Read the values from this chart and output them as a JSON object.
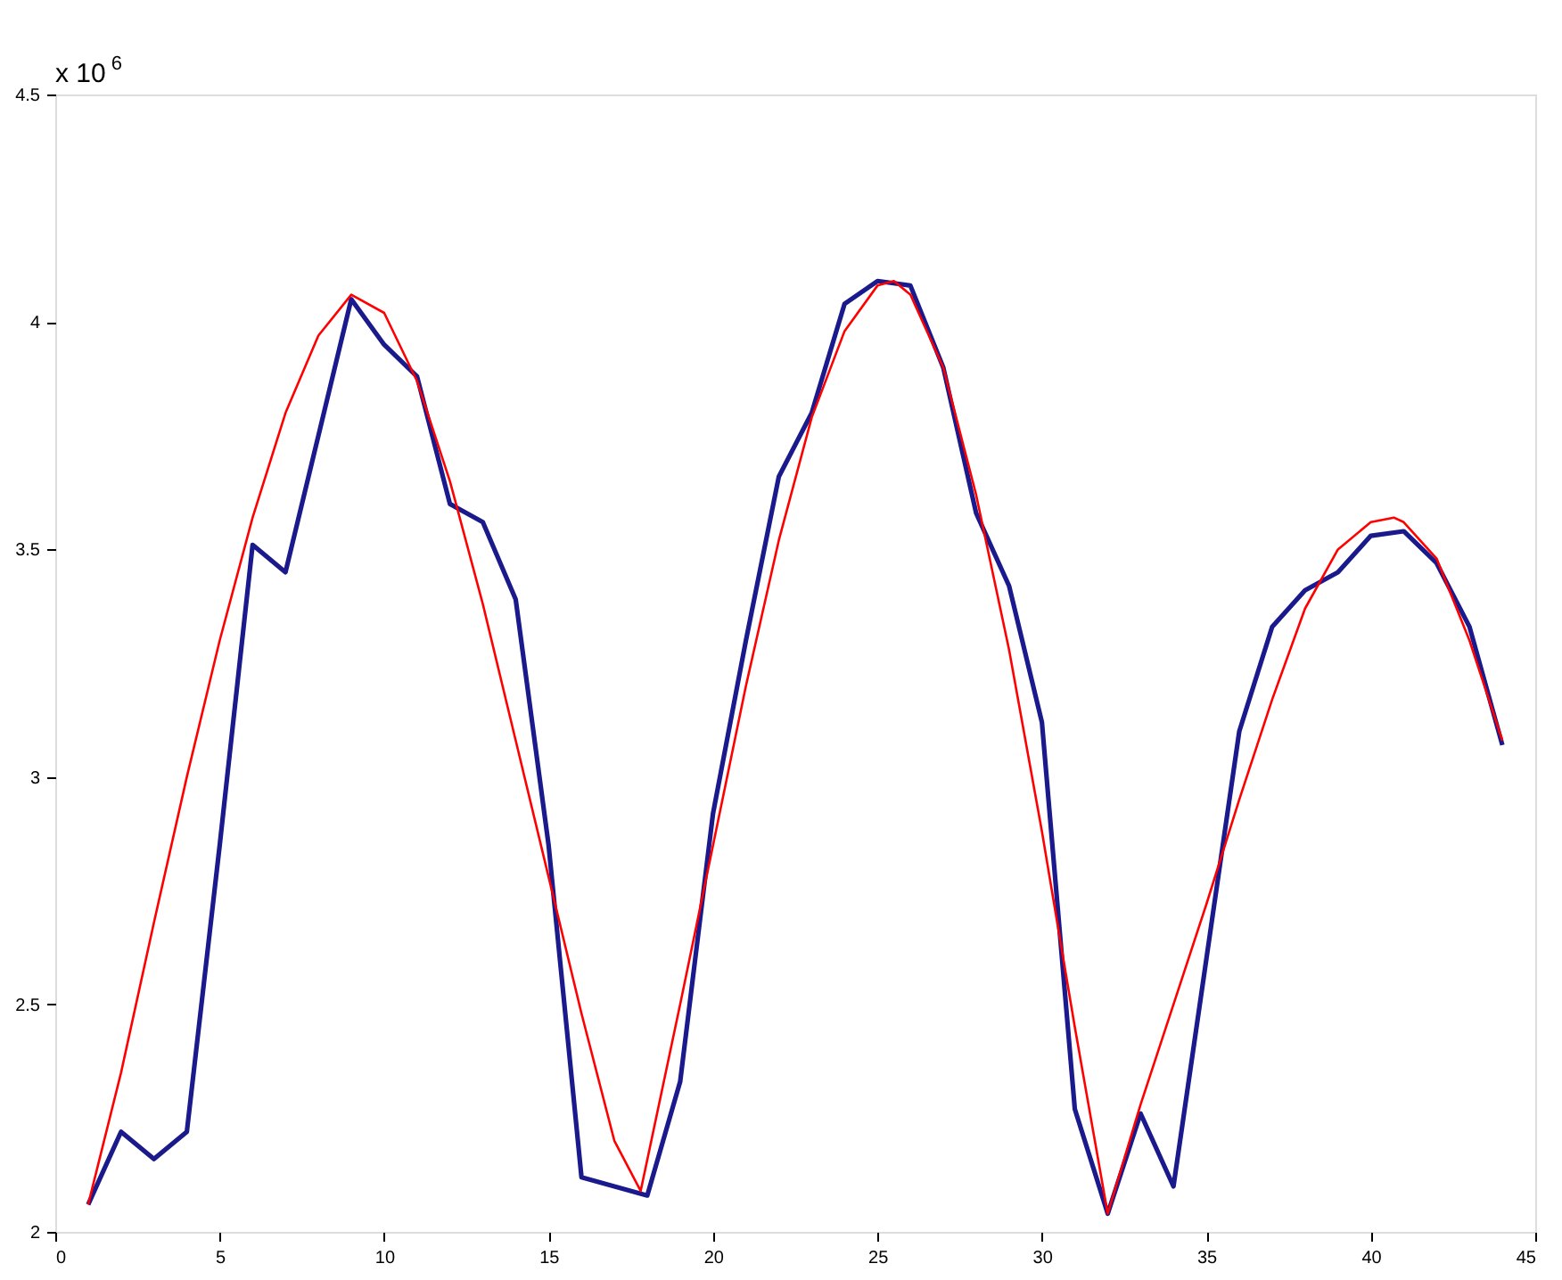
{
  "chart_data": {
    "type": "line",
    "xlim": [
      0,
      45
    ],
    "ylim": [
      2,
      4.5
    ],
    "xticks": [
      0,
      5,
      10,
      15,
      20,
      25,
      30,
      35,
      40,
      45
    ],
    "yticks": [
      2,
      2.5,
      3,
      3.5,
      4,
      4.5
    ],
    "grid": false,
    "marker": "none",
    "line_style": "solid",
    "annotations": [
      "x 10$^{6}$"
    ],
    "series": [
      {
        "color": "#1a1a8c",
        "x": [
          1,
          2,
          3,
          4,
          5,
          6,
          7,
          8,
          9,
          10,
          11,
          12,
          13,
          14,
          15,
          16,
          17,
          18,
          19,
          20,
          21,
          22,
          23,
          24,
          25,
          26,
          27,
          28,
          29,
          30,
          31,
          32,
          33,
          34,
          35,
          36,
          37,
          38,
          39,
          40,
          41,
          42,
          43,
          44
        ],
        "values": [
          2.06,
          2.22,
          2.16,
          2.22,
          2.85,
          3.51,
          3.45,
          3.75,
          4.05,
          3.95,
          3.88,
          3.6,
          3.56,
          3.39,
          2.85,
          2.12,
          2.1,
          2.08,
          2.33,
          2.92,
          3.3,
          3.66,
          3.8,
          4.04,
          4.09,
          4.08,
          3.9,
          3.58,
          3.42,
          3.12,
          2.27,
          2.04,
          2.26,
          2.1,
          2.6,
          3.1,
          3.33,
          3.41,
          3.45,
          3.53,
          3.54,
          3.47,
          3.33,
          3.07
        ]
      },
      {
        "color": "#ff0000",
        "x": [
          1,
          2,
          3,
          4,
          5,
          6,
          7,
          8,
          9,
          10,
          11,
          12,
          13,
          14,
          15,
          16,
          17,
          17.8,
          19,
          20,
          21,
          22,
          23,
          24,
          25,
          25.5,
          26,
          27,
          28,
          29,
          30,
          31,
          32,
          33,
          34,
          35,
          36,
          37,
          38,
          39,
          40,
          40.7,
          41,
          42,
          43,
          44
        ],
        "values": [
          2.06,
          2.35,
          2.68,
          3.0,
          3.3,
          3.57,
          3.8,
          3.97,
          4.06,
          4.02,
          3.87,
          3.65,
          3.38,
          3.08,
          2.78,
          2.48,
          2.2,
          2.09,
          2.5,
          2.85,
          3.2,
          3.52,
          3.79,
          3.98,
          4.08,
          4.09,
          4.06,
          3.9,
          3.62,
          3.28,
          2.88,
          2.45,
          2.04,
          2.28,
          2.5,
          2.72,
          2.95,
          3.17,
          3.37,
          3.5,
          3.56,
          3.57,
          3.56,
          3.48,
          3.3,
          3.08
        ]
      }
    ]
  }
}
